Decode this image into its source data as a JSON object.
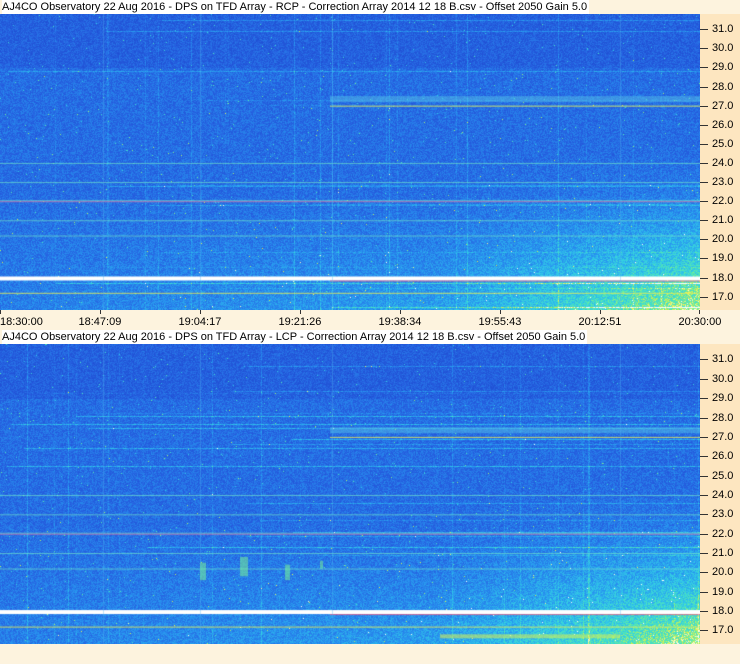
{
  "panels": [
    {
      "title": "AJ4CO Observatory 22 Aug 2016  -  DPS on TFD Array  -  RCP  -  Correction Array 2014 12 18 B.csv  -  Offset 2050  Gain 5.0",
      "polarization": "RCP"
    },
    {
      "title": "AJ4CO Observatory 22 Aug 2016  -  DPS on TFD Array  -  LCP  -  Correction Array 2014 12 18 B.csv  -  Offset 2050  Gain 5.0",
      "polarization": "LCP"
    }
  ],
  "chart_data": [
    {
      "type": "heatmap",
      "title": "AJ4CO Observatory 22 Aug 2016  -  DPS on TFD Array  -  RCP  -  Correction Array 2014 12 18 B.csv  -  Offset 2050  Gain 5.0",
      "x_ticks": [
        "18:30:00",
        "18:47:09",
        "19:04:17",
        "19:21:26",
        "19:38:34",
        "19:55:43",
        "20:12:51",
        "20:30:00"
      ],
      "y_ticks": [
        "31.0",
        "30.0",
        "29.0",
        "28.0",
        "27.0",
        "26.0",
        "25.0",
        "24.0",
        "23.0",
        "22.0",
        "21.0",
        "20.0",
        "19.0",
        "18.0",
        "17.0"
      ],
      "ylim": [
        16.3,
        31.8
      ],
      "colormap": [
        "#1a3cc8",
        "#2a66e0",
        "#28a8f0",
        "#40e0c0",
        "#e0f040",
        "#ffffff"
      ]
    },
    {
      "type": "heatmap",
      "title": "AJ4CO Observatory 22 Aug 2016  -  DPS on TFD Array  -  LCP  -  Correction Array 2014 12 18 B.csv  -  Offset 2050  Gain 5.0",
      "y_ticks": [
        "31.0",
        "30.0",
        "29.0",
        "28.0",
        "27.0",
        "26.0",
        "25.0",
        "24.0",
        "23.0",
        "22.0",
        "21.0",
        "20.0",
        "19.0",
        "18.0",
        "17.0"
      ],
      "ylim": [
        16.3,
        31.8
      ],
      "colormap": [
        "#1a3cc8",
        "#2a66e0",
        "#28a8f0",
        "#40e0c0",
        "#e0f040",
        "#ffffff"
      ]
    }
  ]
}
